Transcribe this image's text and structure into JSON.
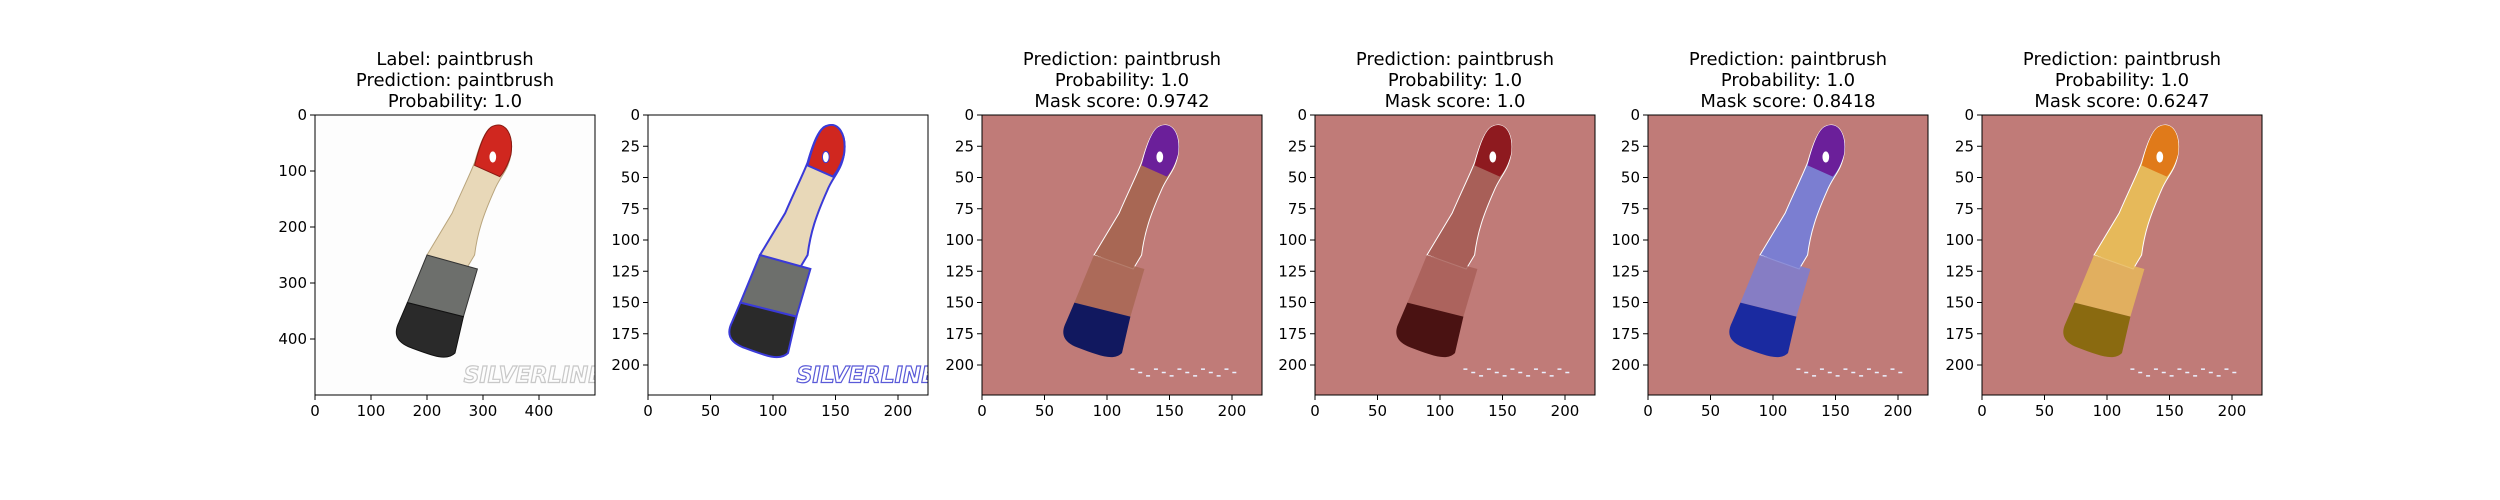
{
  "panels": [
    {
      "title_lines": [
        "Label: paintbrush",
        "Prediction: paintbrush",
        "Probability: 1.0"
      ],
      "background": "#fdfdfd",
      "overlay": "none",
      "x_ticks": [
        "0",
        "100",
        "200",
        "300",
        "400"
      ],
      "y_ticks": [
        "0",
        "100",
        "200",
        "300",
        "400"
      ],
      "watermark": "SILVERLINE"
    },
    {
      "title_lines": [],
      "background": "#ffffff",
      "overlay": "contour",
      "x_ticks": [
        "0",
        "50",
        "100",
        "150",
        "200"
      ],
      "y_ticks": [
        "0",
        "25",
        "50",
        "75",
        "100",
        "125",
        "150",
        "175",
        "200"
      ],
      "watermark": "SILVERLINE"
    },
    {
      "title_lines": [
        "Prediction: paintbrush",
        "Probability: 1.0",
        "Mask score: 0.9742"
      ],
      "background": "#c07b78",
      "overlay": "mask",
      "head_color": "#6b1f9a",
      "body_color": "#a86754",
      "bristle_color": "#11185f",
      "x_ticks": [
        "0",
        "50",
        "100",
        "150",
        "200"
      ],
      "y_ticks": [
        "0",
        "25",
        "50",
        "75",
        "100",
        "125",
        "150",
        "175",
        "200"
      ]
    },
    {
      "title_lines": [
        "Prediction: paintbrush",
        "Probability: 1.0",
        "Mask score: 1.0"
      ],
      "background": "#c07b78",
      "overlay": "mask",
      "head_color": "#8e1a1f",
      "body_color": "#a85f58",
      "bristle_color": "#4a1212",
      "x_ticks": [
        "0",
        "50",
        "100",
        "150",
        "200"
      ],
      "y_ticks": [
        "0",
        "25",
        "50",
        "75",
        "100",
        "125",
        "150",
        "175",
        "200"
      ]
    },
    {
      "title_lines": [
        "Prediction: paintbrush",
        "Probability: 1.0",
        "Mask score: 0.8418"
      ],
      "background": "#c07b78",
      "overlay": "mask",
      "head_color": "#6b1f9a",
      "body_color": "#7b7ed1",
      "bristle_color": "#1a2aa0",
      "x_ticks": [
        "0",
        "50",
        "100",
        "150",
        "200"
      ],
      "y_ticks": [
        "0",
        "25",
        "50",
        "75",
        "100",
        "125",
        "150",
        "175",
        "200"
      ]
    },
    {
      "title_lines": [
        "Prediction: paintbrush",
        "Probability: 1.0",
        "Mask score: 0.6247"
      ],
      "background": "#c07b78",
      "overlay": "mask",
      "head_color": "#e07a1a",
      "body_color": "#e6b95a",
      "bristle_color": "#8a6a10",
      "x_ticks": [
        "0",
        "50",
        "100",
        "150",
        "200"
      ],
      "y_ticks": [
        "0",
        "25",
        "50",
        "75",
        "100",
        "125",
        "150",
        "175",
        "200"
      ]
    }
  ]
}
